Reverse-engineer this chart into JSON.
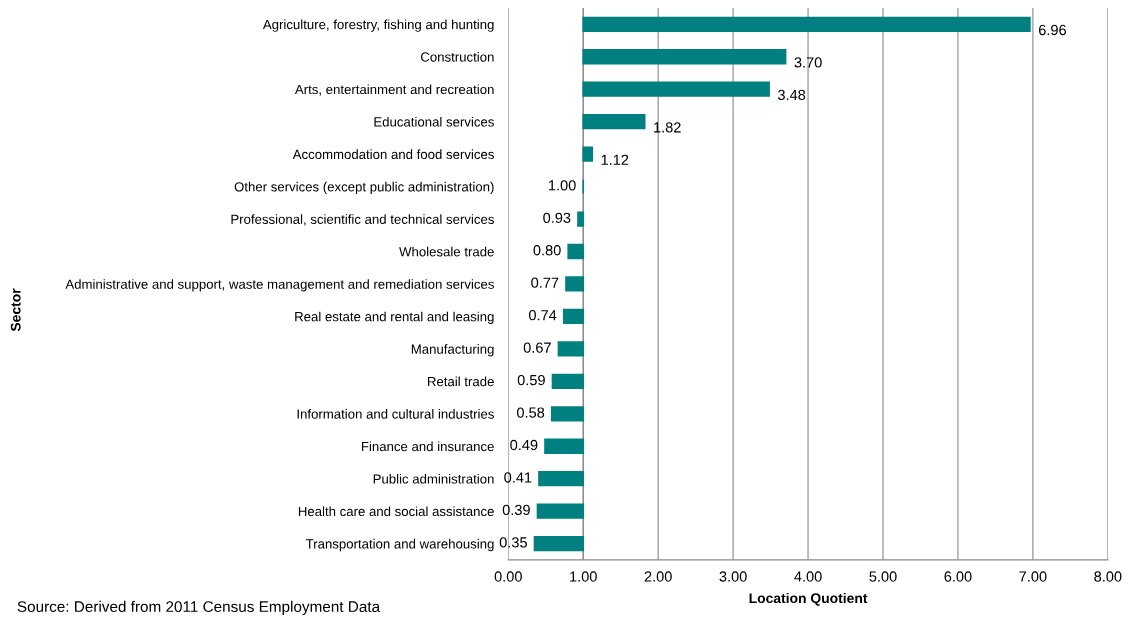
{
  "chart_data": {
    "type": "bar",
    "orientation": "horizontal",
    "xlabel": "Location Quotient",
    "ylabel": "Sector",
    "categories": [
      "Agriculture, forestry, fishing and hunting",
      "Construction",
      "Arts, entertainment and recreation",
      "Educational services",
      "Accommodation and food services",
      "Other services (except public administration)",
      "Professional, scientific and technical services",
      "Wholesale trade",
      "Administrative and support, waste management and remediation services",
      "Real estate and rental and leasing",
      "Manufacturing",
      "Retail trade",
      "Information and cultural industries",
      "Finance and insurance",
      "Public administration",
      "Health care and social assistance",
      "Transportation and warehousing"
    ],
    "base": [
      1,
      1,
      1,
      1,
      1,
      1,
      1,
      1,
      1,
      1,
      1,
      1,
      1,
      1,
      1,
      1,
      1
    ],
    "values": [
      5.96,
      2.7,
      2.48,
      0.82,
      0.12,
      0.0,
      -0.07,
      -0.2,
      -0.23,
      -0.26,
      -0.33,
      -0.41,
      -0.42,
      -0.51,
      -0.59,
      -0.61,
      -0.65
    ],
    "value_labels": [
      "6.96",
      "3.70",
      "3.48",
      "1.82",
      "1.12",
      "1.00",
      "0.93",
      "0.80",
      "0.77",
      "0.74",
      "0.67",
      "0.59",
      "0.58",
      "0.49",
      "0.41",
      "0.39",
      "0.35"
    ],
    "color": "#008080",
    "xlim": [
      0,
      8
    ],
    "xticks": [
      {
        "value": 0,
        "label": "0.00"
      },
      {
        "value": 1,
        "label": "1.00"
      },
      {
        "value": 2,
        "label": "2.00"
      },
      {
        "value": 3,
        "label": "3.00"
      },
      {
        "value": 4,
        "label": "4.00"
      },
      {
        "value": 5,
        "label": "5.00"
      },
      {
        "value": 6,
        "label": "6.00"
      },
      {
        "value": 7,
        "label": "7.00"
      },
      {
        "value": 8,
        "label": "8.00"
      }
    ],
    "grid": "x",
    "legend": false,
    "annotations": [
      "Source: Derived from 2011 Census Employment Data"
    ]
  }
}
